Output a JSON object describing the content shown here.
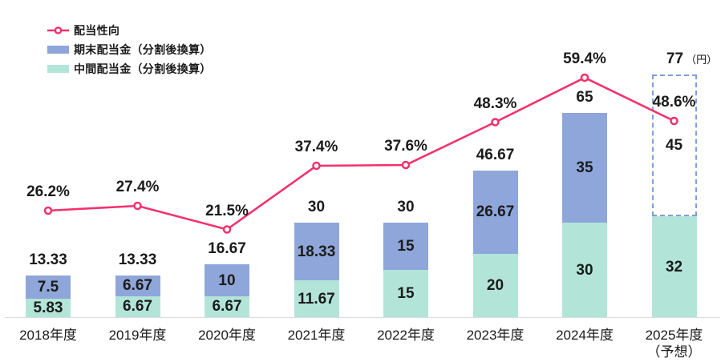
{
  "legend": {
    "payout_label": "配当性向",
    "final_label": "期末配当金（分割後換算）",
    "interim_label": "中間配当金（分割後換算）"
  },
  "chart_data": {
    "type": "bar",
    "subtype": "stacked-bar-with-line",
    "title": "",
    "categories": [
      "2018年度",
      "2019年度",
      "2020年度",
      "2021年度",
      "2022年度",
      "2023年度",
      "2024年度",
      "2025年度"
    ],
    "category_note_last": "（予想）",
    "unit_note": "（円）",
    "series": [
      {
        "name": "中間配当金（分割後換算）",
        "type": "bar-stack",
        "values": [
          5.83,
          6.67,
          6.67,
          11.67,
          15,
          20,
          30,
          32
        ],
        "labels": [
          "5.83",
          "6.67",
          "6.67",
          "11.67",
          "15",
          "20",
          "30",
          "32"
        ]
      },
      {
        "name": "期末配当金（分割後換算）",
        "type": "bar-stack",
        "values": [
          7.5,
          6.67,
          10,
          18.33,
          15,
          26.67,
          35,
          45
        ],
        "labels": [
          "7.5",
          "6.67",
          "10",
          "18.33",
          "15",
          "26.67",
          "35",
          "45"
        ]
      },
      {
        "name": "配当性向",
        "type": "line",
        "values": [
          26.2,
          27.4,
          21.5,
          37.4,
          37.6,
          48.3,
          59.4,
          48.6
        ],
        "labels": [
          "26.2%",
          "27.4%",
          "21.5%",
          "37.4%",
          "37.6%",
          "48.3%",
          "59.4%",
          "48.6%"
        ]
      }
    ],
    "totals": {
      "values": [
        13.33,
        13.33,
        16.67,
        30,
        30,
        46.67,
        65,
        77
      ],
      "labels": [
        "13.33",
        "13.33",
        "16.67",
        "30",
        "30",
        "46.67",
        "65",
        "77"
      ]
    },
    "forecast_index": 7,
    "bar_value_unit": "円",
    "line_value_unit": "%",
    "ylim_bars": [
      0,
      90
    ],
    "ylim_pct": [
      0,
      80
    ],
    "grid": false,
    "legend_position": "top-left"
  },
  "colors": {
    "interim": "#B2E5D8",
    "final": "#8EA6D9",
    "line": "#F3316D",
    "forecast_border": "#7F9FD9",
    "axis": "#DCDCDC",
    "text": "#1B1B1B"
  }
}
